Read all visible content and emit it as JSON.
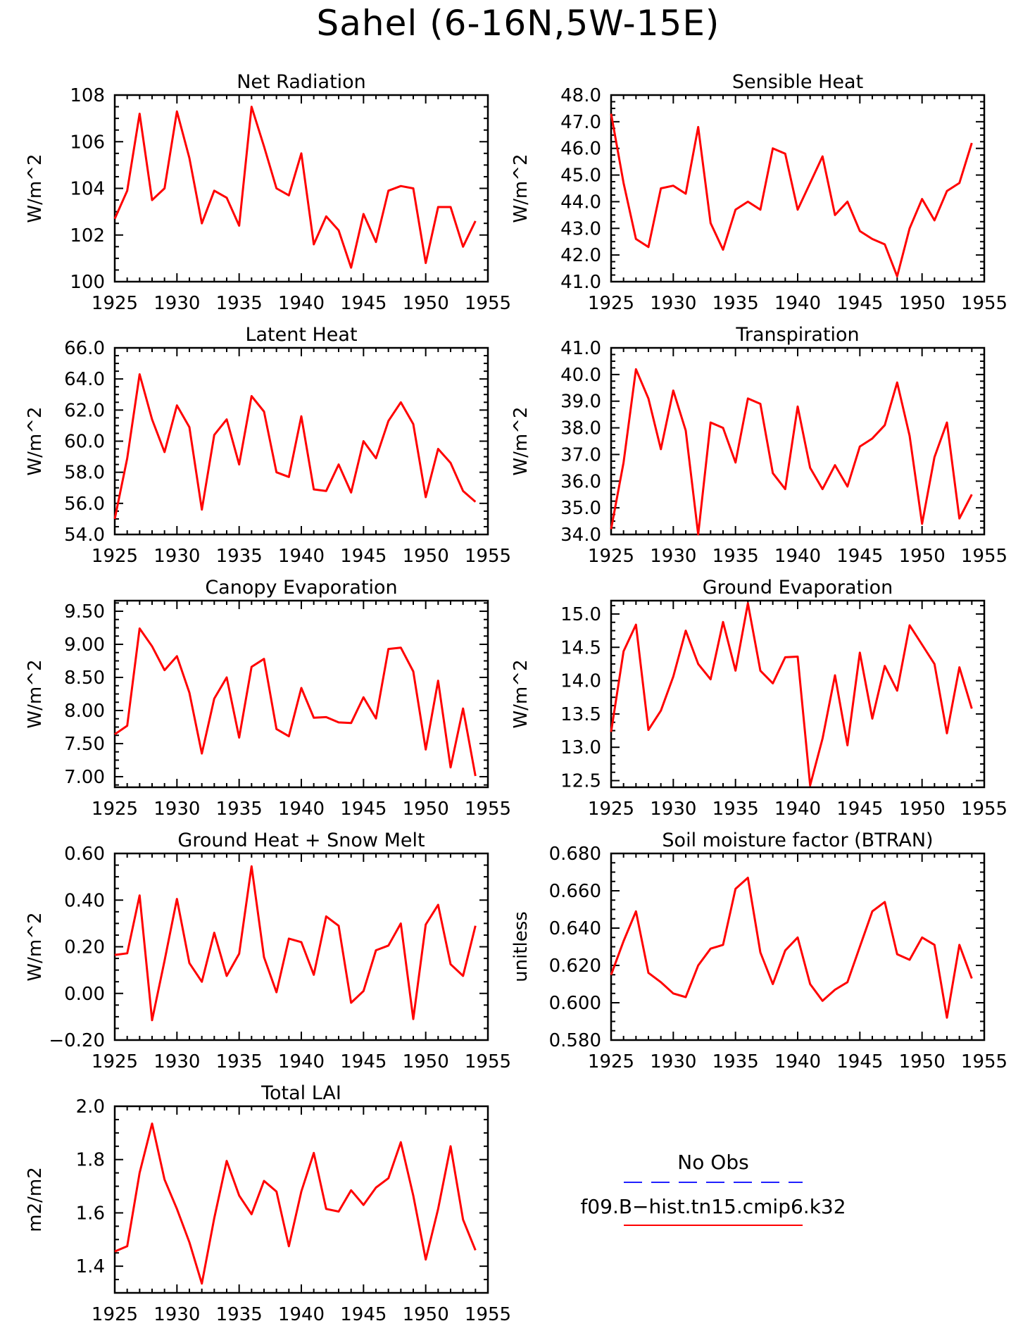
{
  "figure": {
    "title": "Sahel (6-16N,5W-15E)"
  },
  "chart_data": [
    {
      "type": "line",
      "title": "Net Radiation",
      "ylabel": "W/m^2",
      "xlim": [
        1925,
        1955
      ],
      "ylim": [
        100,
        108
      ],
      "yticks": [
        "100",
        "102",
        "104",
        "106",
        "108"
      ],
      "xticks": [
        "1925",
        "1930",
        "1935",
        "1940",
        "1945",
        "1950",
        "1955"
      ],
      "x": [
        1925,
        1926,
        1927,
        1928,
        1929,
        1930,
        1931,
        1932,
        1933,
        1934,
        1935,
        1936,
        1937,
        1938,
        1939,
        1940,
        1941,
        1942,
        1943,
        1944,
        1945,
        1946,
        1947,
        1948,
        1949,
        1950,
        1951,
        1952,
        1953,
        1954
      ],
      "series": [
        {
          "color": "#ff0000",
          "values": [
            102.7,
            103.9,
            107.2,
            103.5,
            104.0,
            107.3,
            105.3,
            102.5,
            103.9,
            103.6,
            102.4,
            107.5,
            105.8,
            104.0,
            103.7,
            105.5,
            101.6,
            102.8,
            102.2,
            100.6,
            102.9,
            101.7,
            103.9,
            104.1,
            104.0,
            100.8,
            103.2,
            103.2,
            101.5,
            102.6
          ]
        }
      ]
    },
    {
      "type": "line",
      "title": "Sensible Heat",
      "ylabel": "W/m^2",
      "xlim": [
        1925,
        1955
      ],
      "ylim": [
        41,
        48
      ],
      "yticks": [
        "41.0",
        "42.0",
        "43.0",
        "44.0",
        "45.0",
        "46.0",
        "47.0",
        "48.0"
      ],
      "xticks": [
        "1925",
        "1930",
        "1935",
        "1940",
        "1945",
        "1950",
        "1955"
      ],
      "x": [
        1925,
        1926,
        1927,
        1928,
        1929,
        1930,
        1931,
        1932,
        1933,
        1934,
        1935,
        1936,
        1937,
        1938,
        1939,
        1940,
        1941,
        1942,
        1943,
        1944,
        1945,
        1946,
        1947,
        1948,
        1949,
        1950,
        1951,
        1952,
        1953,
        1954
      ],
      "series": [
        {
          "color": "#ff0000",
          "values": [
            47.3,
            44.7,
            42.6,
            42.3,
            44.5,
            44.6,
            44.3,
            46.8,
            43.2,
            42.2,
            43.7,
            44.0,
            43.7,
            46.0,
            45.8,
            43.7,
            44.7,
            45.7,
            43.5,
            44.0,
            42.9,
            42.6,
            42.4,
            41.2,
            43.0,
            44.1,
            43.3,
            44.4,
            44.7,
            46.2
          ]
        }
      ]
    },
    {
      "type": "line",
      "title": "Latent Heat",
      "ylabel": "W/m^2",
      "xlim": [
        1925,
        1955
      ],
      "ylim": [
        54,
        66
      ],
      "yticks": [
        "54.0",
        "56.0",
        "58.0",
        "60.0",
        "62.0",
        "64.0",
        "66.0"
      ],
      "xticks": [
        "1925",
        "1930",
        "1935",
        "1940",
        "1945",
        "1950",
        "1955"
      ],
      "x": [
        1925,
        1926,
        1927,
        1928,
        1929,
        1930,
        1931,
        1932,
        1933,
        1934,
        1935,
        1936,
        1937,
        1938,
        1939,
        1940,
        1941,
        1942,
        1943,
        1944,
        1945,
        1946,
        1947,
        1948,
        1949,
        1950,
        1951,
        1952,
        1953,
        1954
      ],
      "series": [
        {
          "color": "#ff0000",
          "values": [
            55.0,
            58.9,
            64.3,
            61.4,
            59.3,
            62.3,
            60.9,
            55.6,
            60.4,
            61.4,
            58.5,
            62.9,
            61.9,
            58.0,
            57.7,
            61.6,
            56.9,
            56.8,
            58.5,
            56.7,
            60.0,
            58.9,
            61.3,
            62.5,
            61.1,
            56.4,
            59.5,
            58.6,
            56.8,
            56.1
          ]
        }
      ]
    },
    {
      "type": "line",
      "title": "Transpiration",
      "ylabel": "W/m^2",
      "xlim": [
        1925,
        1955
      ],
      "ylim": [
        34,
        41
      ],
      "yticks": [
        "34.0",
        "35.0",
        "36.0",
        "37.0",
        "38.0",
        "39.0",
        "40.0",
        "41.0"
      ],
      "xticks": [
        "1925",
        "1930",
        "1935",
        "1940",
        "1945",
        "1950",
        "1955"
      ],
      "x": [
        1925,
        1926,
        1927,
        1928,
        1929,
        1930,
        1931,
        1932,
        1933,
        1934,
        1935,
        1936,
        1937,
        1938,
        1939,
        1940,
        1941,
        1942,
        1943,
        1944,
        1945,
        1946,
        1947,
        1948,
        1949,
        1950,
        1951,
        1952,
        1953,
        1954
      ],
      "series": [
        {
          "color": "#ff0000",
          "values": [
            34.2,
            36.7,
            40.2,
            39.1,
            37.2,
            39.4,
            37.9,
            34.0,
            38.2,
            38.0,
            36.7,
            39.1,
            38.9,
            36.3,
            35.7,
            38.8,
            36.5,
            35.7,
            36.6,
            35.8,
            37.3,
            37.6,
            38.1,
            39.7,
            37.7,
            34.4,
            36.9,
            38.2,
            34.6,
            35.5
          ]
        }
      ]
    },
    {
      "type": "line",
      "title": "Canopy Evaporation",
      "ylabel": "W/m^2",
      "xlim": [
        1925,
        1955
      ],
      "ylim": [
        6.84,
        9.66
      ],
      "yticks": [
        "7.00",
        "7.50",
        "8.00",
        "8.50",
        "9.00",
        "9.50"
      ],
      "xticks": [
        "1925",
        "1930",
        "1935",
        "1940",
        "1945",
        "1950",
        "1955"
      ],
      "x": [
        1925,
        1926,
        1927,
        1928,
        1929,
        1930,
        1931,
        1932,
        1933,
        1934,
        1935,
        1936,
        1937,
        1938,
        1939,
        1940,
        1941,
        1942,
        1943,
        1944,
        1945,
        1946,
        1947,
        1948,
        1949,
        1950,
        1951,
        1952,
        1953,
        1954
      ],
      "series": [
        {
          "color": "#ff0000",
          "values": [
            7.64,
            7.77,
            9.24,
            8.97,
            8.61,
            8.82,
            8.27,
            7.35,
            8.18,
            8.5,
            7.59,
            8.66,
            8.78,
            7.72,
            7.61,
            8.34,
            7.89,
            7.9,
            7.82,
            7.81,
            8.2,
            7.88,
            8.93,
            8.95,
            8.59,
            7.41,
            8.45,
            7.14,
            8.03,
            7.01
          ]
        }
      ]
    },
    {
      "type": "line",
      "title": "Ground Evaporation",
      "ylabel": "W/m^2",
      "xlim": [
        1925,
        1955
      ],
      "ylim": [
        12.4,
        15.2
      ],
      "yticks": [
        "12.5",
        "13.0",
        "13.5",
        "14.0",
        "14.5",
        "15.0"
      ],
      "xticks": [
        "1925",
        "1930",
        "1935",
        "1940",
        "1945",
        "1950",
        "1955"
      ],
      "x": [
        1925,
        1926,
        1927,
        1928,
        1929,
        1930,
        1931,
        1932,
        1933,
        1934,
        1935,
        1936,
        1937,
        1938,
        1939,
        1940,
        1941,
        1942,
        1943,
        1944,
        1945,
        1946,
        1947,
        1948,
        1949,
        1950,
        1951,
        1952,
        1953,
        1954
      ],
      "series": [
        {
          "color": "#ff0000",
          "values": [
            13.23,
            14.44,
            14.84,
            13.26,
            13.55,
            14.06,
            14.75,
            14.25,
            14.02,
            14.88,
            14.15,
            15.16,
            14.15,
            13.96,
            14.35,
            14.36,
            12.43,
            13.13,
            14.08,
            13.03,
            14.42,
            13.43,
            14.22,
            13.85,
            14.83,
            14.54,
            14.25,
            13.21,
            14.2,
            13.58
          ]
        }
      ]
    },
    {
      "type": "line",
      "title": "Ground Heat + Snow Melt",
      "ylabel": "W/m^2",
      "xlim": [
        1925,
        1955
      ],
      "ylim": [
        -0.2,
        0.6
      ],
      "yticks": [
        "−0.20",
        "0.00",
        "0.20",
        "0.40",
        "0.60"
      ],
      "xticks": [
        "1925",
        "1930",
        "1935",
        "1940",
        "1945",
        "1950",
        "1955"
      ],
      "x": [
        1925,
        1926,
        1927,
        1928,
        1929,
        1930,
        1931,
        1932,
        1933,
        1934,
        1935,
        1936,
        1937,
        1938,
        1939,
        1940,
        1941,
        1942,
        1943,
        1944,
        1945,
        1946,
        1947,
        1948,
        1949,
        1950,
        1951,
        1952,
        1953,
        1954
      ],
      "series": [
        {
          "color": "#ff0000",
          "values": [
            0.165,
            0.172,
            0.42,
            -0.115,
            0.14,
            0.405,
            0.13,
            0.05,
            0.26,
            0.075,
            0.17,
            0.545,
            0.155,
            0.005,
            0.235,
            0.22,
            0.08,
            0.33,
            0.29,
            -0.04,
            0.01,
            0.185,
            0.205,
            0.3,
            -0.11,
            0.295,
            0.38,
            0.125,
            0.075,
            0.29
          ]
        }
      ]
    },
    {
      "type": "line",
      "title": "Soil moisture factor (BTRAN)",
      "ylabel": "unitless",
      "xlim": [
        1925,
        1955
      ],
      "ylim": [
        0.58,
        0.68
      ],
      "yticks": [
        "0.580",
        "0.600",
        "0.620",
        "0.640",
        "0.660",
        "0.680"
      ],
      "xticks": [
        "1925",
        "1930",
        "1935",
        "1940",
        "1945",
        "1950",
        "1955"
      ],
      "x": [
        1925,
        1926,
        1927,
        1928,
        1929,
        1930,
        1931,
        1932,
        1933,
        1934,
        1935,
        1936,
        1937,
        1938,
        1939,
        1940,
        1941,
        1942,
        1943,
        1944,
        1945,
        1946,
        1947,
        1948,
        1949,
        1950,
        1951,
        1952,
        1953,
        1954
      ],
      "series": [
        {
          "color": "#ff0000",
          "values": [
            0.615,
            0.633,
            0.649,
            0.616,
            0.611,
            0.605,
            0.603,
            0.62,
            0.629,
            0.631,
            0.661,
            0.667,
            0.627,
            0.61,
            0.628,
            0.635,
            0.61,
            0.601,
            0.607,
            0.611,
            0.63,
            0.649,
            0.654,
            0.626,
            0.623,
            0.635,
            0.631,
            0.592,
            0.631,
            0.613
          ]
        }
      ]
    },
    {
      "type": "line",
      "title": "Total LAI",
      "ylabel": "m2/m2",
      "xlim": [
        1925,
        1955
      ],
      "ylim": [
        1.3,
        2.0
      ],
      "yticks": [
        "1.4",
        "1.6",
        "1.8",
        "2.0"
      ],
      "xticks": [
        "1925",
        "1930",
        "1935",
        "1940",
        "1945",
        "1950",
        "1955"
      ],
      "x": [
        1925,
        1926,
        1927,
        1928,
        1929,
        1930,
        1931,
        1932,
        1933,
        1934,
        1935,
        1936,
        1937,
        1938,
        1939,
        1940,
        1941,
        1942,
        1943,
        1944,
        1945,
        1946,
        1947,
        1948,
        1949,
        1950,
        1951,
        1952,
        1953,
        1954
      ],
      "series": [
        {
          "color": "#ff0000",
          "values": [
            1.455,
            1.475,
            1.75,
            1.935,
            1.725,
            1.615,
            1.49,
            1.335,
            1.58,
            1.795,
            1.665,
            1.595,
            1.72,
            1.68,
            1.475,
            1.68,
            1.825,
            1.615,
            1.605,
            1.685,
            1.63,
            1.695,
            1.73,
            1.865,
            1.665,
            1.425,
            1.615,
            1.85,
            1.575,
            1.46
          ]
        }
      ]
    }
  ],
  "legend": {
    "entries": [
      {
        "label": "No Obs",
        "color": "#2020ff",
        "style": "dashed"
      },
      {
        "label": "f09.B−hist.tn15.cmip6.k32",
        "color": "#ff0000",
        "style": "solid"
      }
    ]
  }
}
